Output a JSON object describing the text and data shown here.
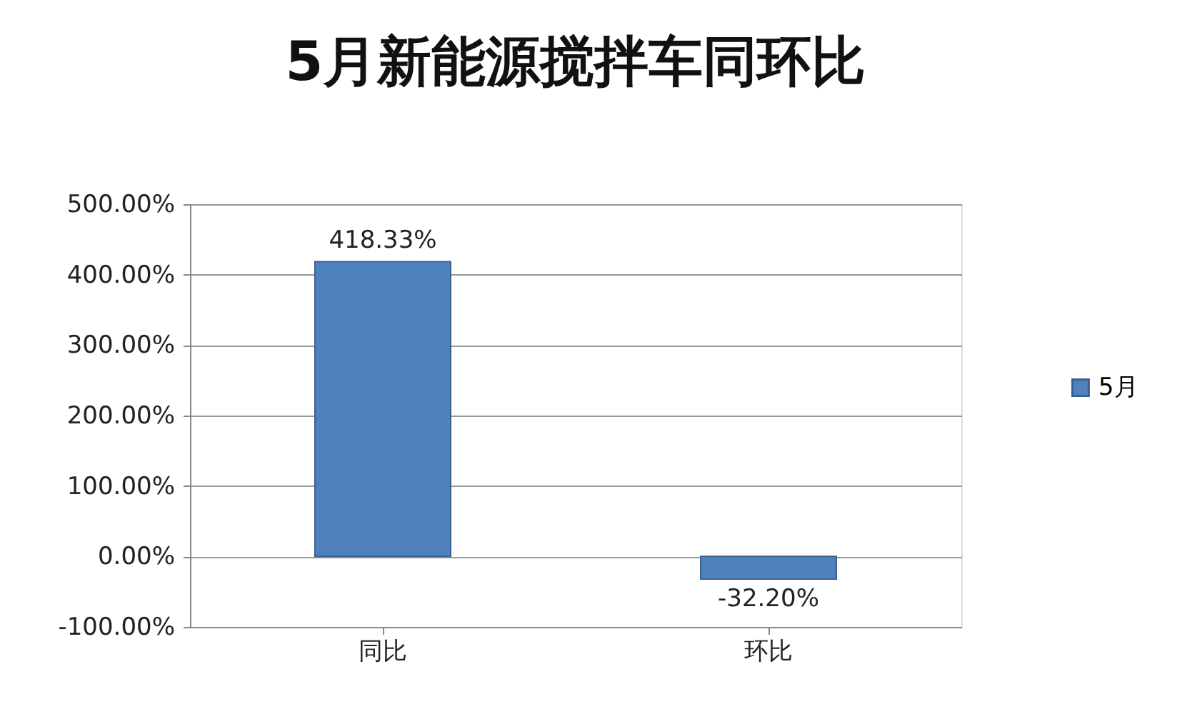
{
  "chart_data": {
    "type": "bar",
    "title": "5月新能源搅拌车同环比",
    "categories": [
      "同比",
      "环比"
    ],
    "series": [
      {
        "name": "5月",
        "color": "#4f81bd",
        "values": [
          418.33,
          -32.2
        ],
        "value_labels": [
          "418.33%",
          "-32.20%"
        ]
      }
    ],
    "ylim": [
      -100,
      500
    ],
    "yticks": [
      {
        "value": -100,
        "label": "-100.00%"
      },
      {
        "value": 0,
        "label": "0.00%"
      },
      {
        "value": 100,
        "label": "100.00%"
      },
      {
        "value": 200,
        "label": "200.00%"
      },
      {
        "value": 300,
        "label": "300.00%"
      },
      {
        "value": 400,
        "label": "400.00%"
      },
      {
        "value": 500,
        "label": "500.00%"
      }
    ],
    "grid": "y",
    "legend": "right"
  }
}
